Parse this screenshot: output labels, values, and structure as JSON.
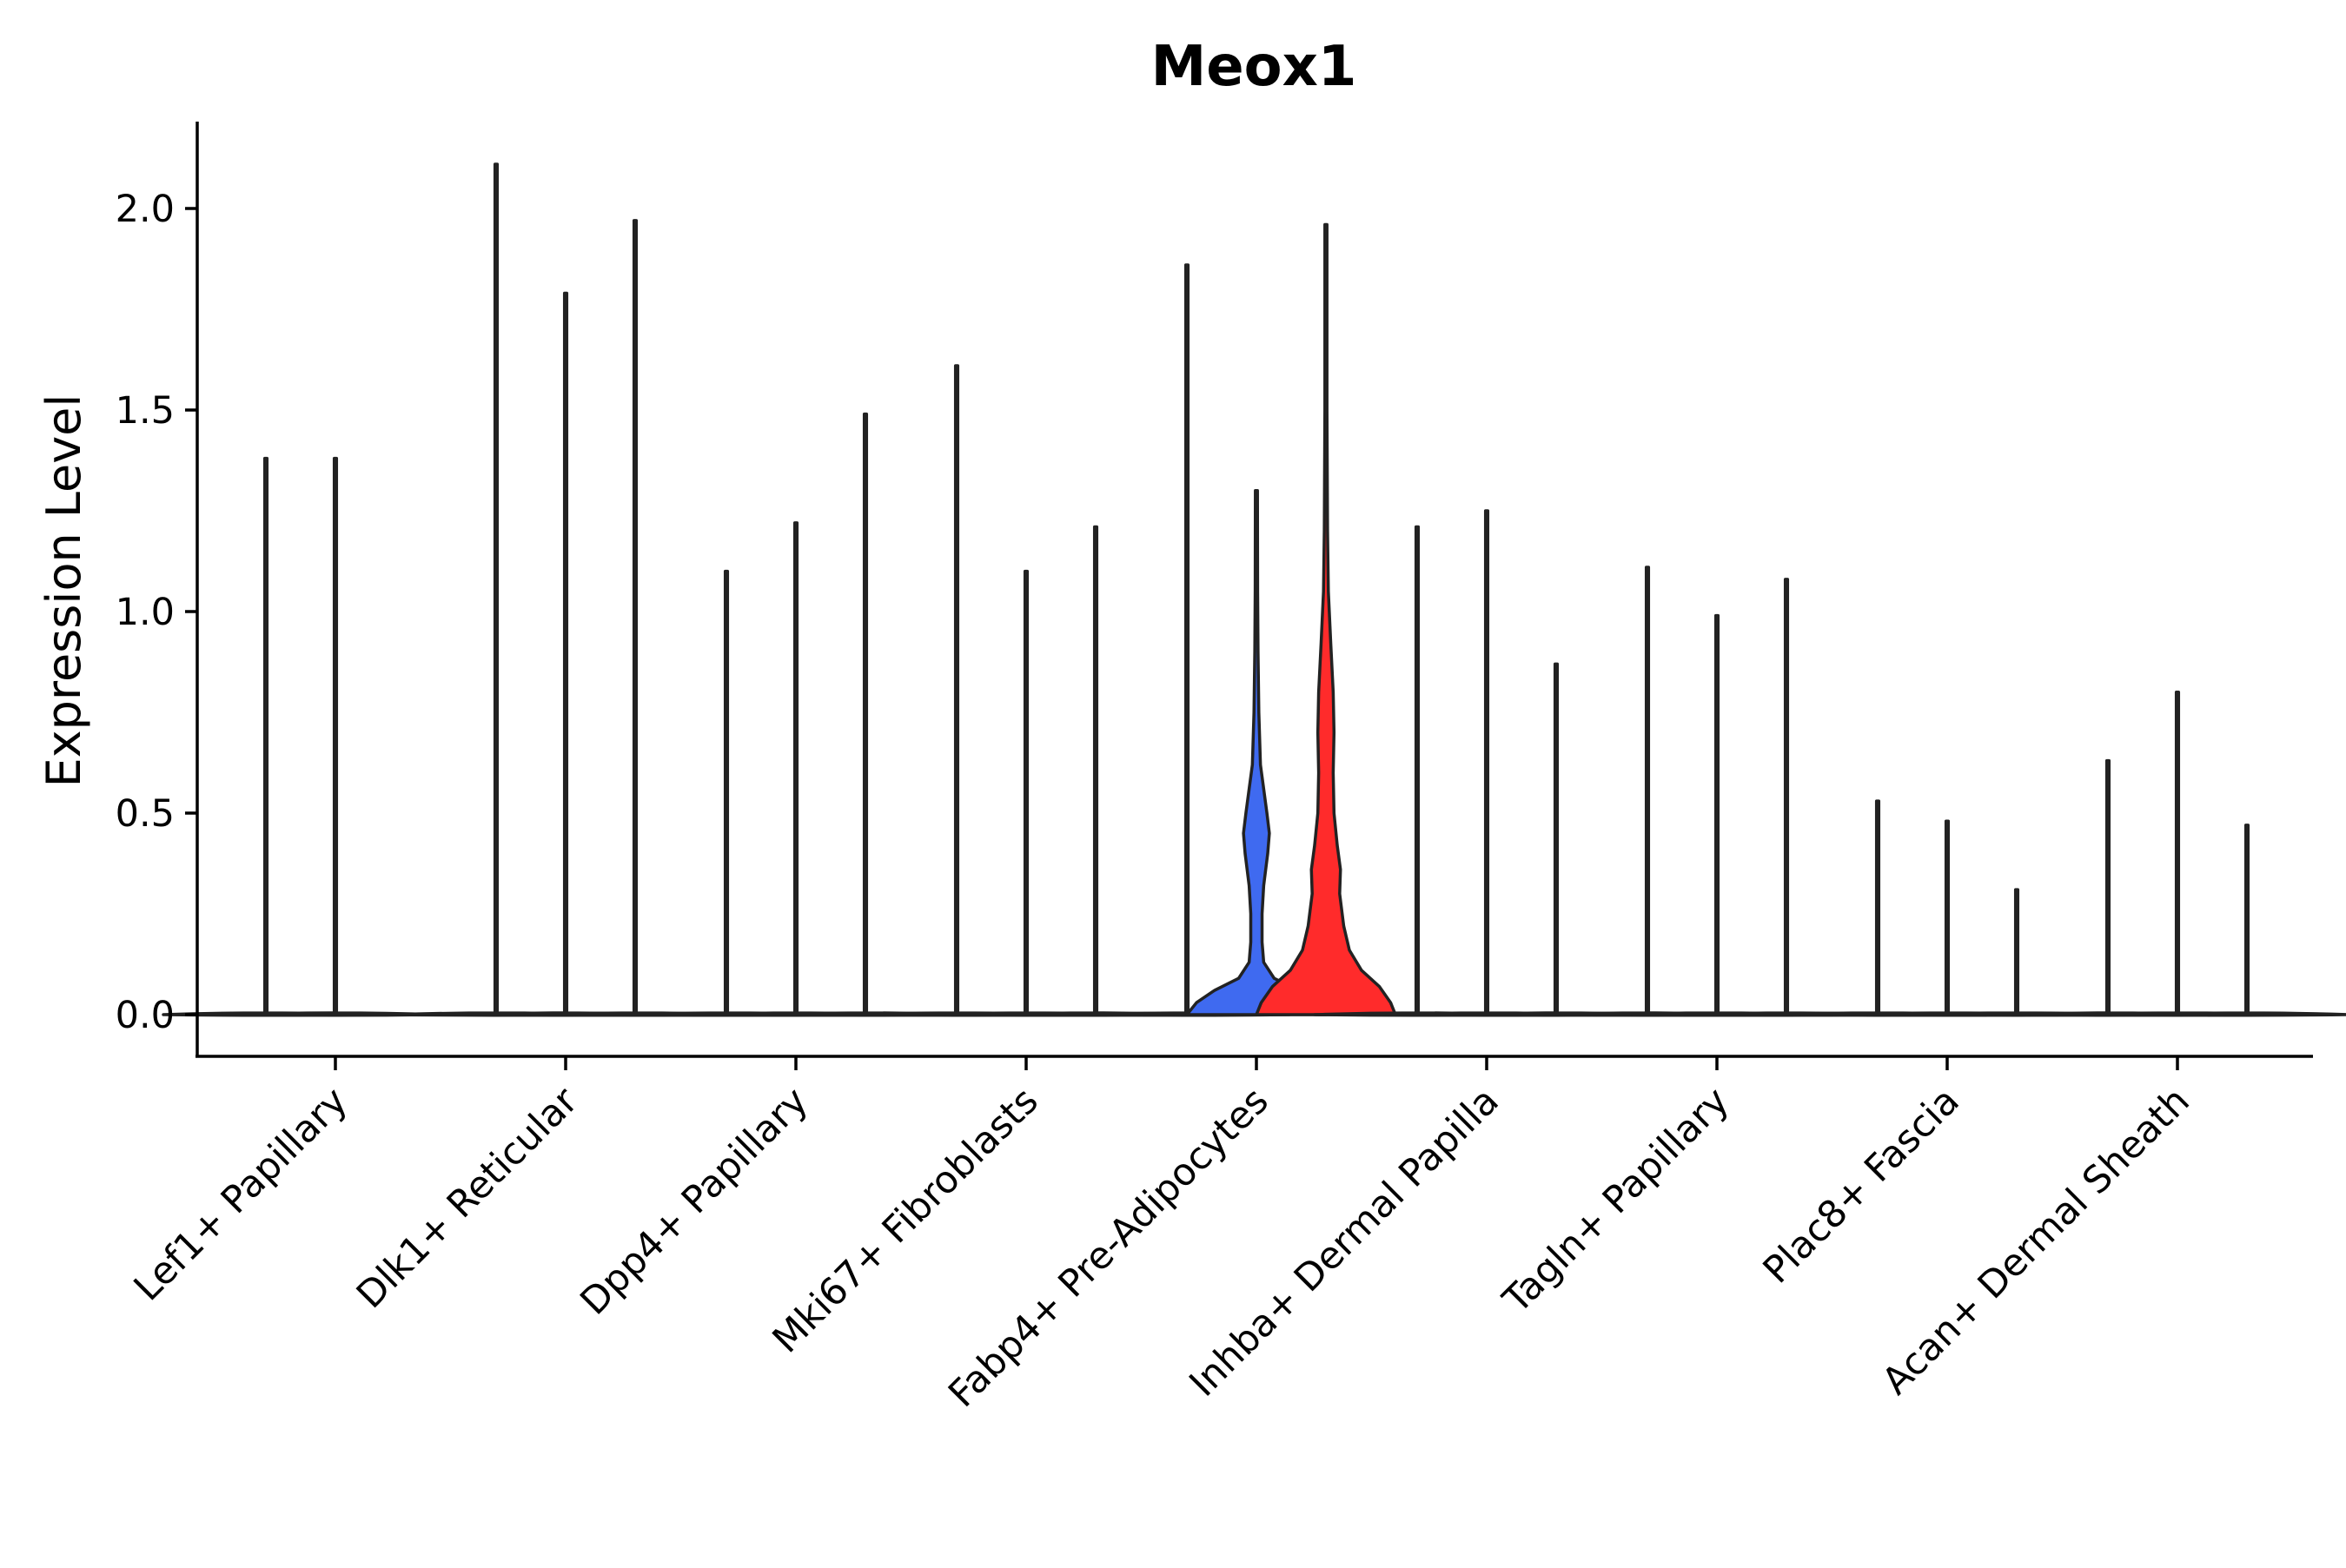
{
  "chart_data": {
    "type": "violin",
    "title": "Meox1",
    "xlabel": "",
    "ylabel": "Expression Level",
    "ylim": [
      -0.1,
      2.2
    ],
    "yticks": [
      0.0,
      0.5,
      1.0,
      1.5,
      2.0
    ],
    "ytick_labels": [
      "0.0",
      "0.5",
      "1.0",
      "1.5",
      "2.0"
    ],
    "grid": false,
    "legend": false,
    "categories": [
      "Lef1+ Papillary",
      "Dlk1+ Reticular",
      "Dpp4+ Papillary",
      "Mki67+ Fibroblasts",
      "Fabp4+ Pre-Adipocytes",
      "Inhba+ Dermal Papilla",
      "Tagln+ Papillary",
      "Plac8+ Fascia",
      "Acan+ Dermal Sheath"
    ],
    "groups_per_category": 3,
    "group_colors": [
      "#F8766D",
      "#00BA38",
      "#619CFF"
    ],
    "violins": [
      {
        "category": "Lef1+ Papillary",
        "slot": 0,
        "max": 1.38,
        "fill": "#F8766D",
        "prominent": false
      },
      {
        "category": "Lef1+ Papillary",
        "slot": 1,
        "max": 1.38,
        "fill": "#00BA38",
        "prominent": false
      },
      {
        "category": "Dlk1+ Reticular",
        "slot": 0,
        "max": 2.11,
        "fill": "#F8766D",
        "prominent": false
      },
      {
        "category": "Dlk1+ Reticular",
        "slot": 1,
        "max": 1.79,
        "fill": "#00BA38",
        "prominent": false
      },
      {
        "category": "Dlk1+ Reticular",
        "slot": 2,
        "max": 1.97,
        "fill": "#619CFF",
        "prominent": false
      },
      {
        "category": "Dpp4+ Papillary",
        "slot": 0,
        "max": 1.1,
        "fill": "#F8766D",
        "prominent": false
      },
      {
        "category": "Dpp4+ Papillary",
        "slot": 1,
        "max": 1.22,
        "fill": "#00BA38",
        "prominent": false
      },
      {
        "category": "Dpp4+ Papillary",
        "slot": 2,
        "max": 1.49,
        "fill": "#619CFF",
        "prominent": false
      },
      {
        "category": "Mki67+ Fibroblasts",
        "slot": 0,
        "max": 1.61,
        "fill": "#F8766D",
        "prominent": false
      },
      {
        "category": "Mki67+ Fibroblasts",
        "slot": 1,
        "max": 1.1,
        "fill": "#00BA38",
        "prominent": false
      },
      {
        "category": "Mki67+ Fibroblasts",
        "slot": 2,
        "max": 1.21,
        "fill": "#619CFF",
        "prominent": false
      },
      {
        "category": "Fabp4+ Pre-Adipocytes",
        "slot": 0,
        "max": 1.86,
        "fill": "#F8766D",
        "prominent": false
      },
      {
        "category": "Fabp4+ Pre-Adipocytes",
        "slot": 1,
        "max": 1.3,
        "fill": "#3F6AF0",
        "prominent": true,
        "density": [
          [
            0.0,
            0.86
          ],
          [
            0.03,
            0.74
          ],
          [
            0.06,
            0.52
          ],
          [
            0.09,
            0.22
          ],
          [
            0.13,
            0.09
          ],
          [
            0.18,
            0.07
          ],
          [
            0.25,
            0.07
          ],
          [
            0.32,
            0.09
          ],
          [
            0.4,
            0.14
          ],
          [
            0.45,
            0.16
          ],
          [
            0.5,
            0.13
          ],
          [
            0.56,
            0.09
          ],
          [
            0.62,
            0.05
          ],
          [
            0.75,
            0.03
          ],
          [
            0.9,
            0.02
          ],
          [
            1.05,
            0.015
          ],
          [
            1.3,
            0.01
          ]
        ]
      },
      {
        "category": "Fabp4+ Pre-Adipocytes",
        "slot": 2,
        "max": 1.96,
        "fill": "#FF2B2B",
        "prominent": true,
        "density": [
          [
            0.0,
            0.86
          ],
          [
            0.03,
            0.8
          ],
          [
            0.07,
            0.66
          ],
          [
            0.11,
            0.44
          ],
          [
            0.16,
            0.29
          ],
          [
            0.22,
            0.22
          ],
          [
            0.3,
            0.17
          ],
          [
            0.36,
            0.18
          ],
          [
            0.42,
            0.14
          ],
          [
            0.5,
            0.1
          ],
          [
            0.6,
            0.09
          ],
          [
            0.7,
            0.1
          ],
          [
            0.8,
            0.09
          ],
          [
            0.92,
            0.06
          ],
          [
            1.05,
            0.03
          ],
          [
            1.2,
            0.02
          ],
          [
            1.5,
            0.012
          ],
          [
            1.96,
            0.008
          ]
        ]
      },
      {
        "category": "Inhba+ Dermal Papilla",
        "slot": 0,
        "max": 1.21,
        "fill": "#F8766D",
        "prominent": false
      },
      {
        "category": "Inhba+ Dermal Papilla",
        "slot": 1,
        "max": 1.25,
        "fill": "#00BA38",
        "prominent": false
      },
      {
        "category": "Inhba+ Dermal Papilla",
        "slot": 2,
        "max": 0.87,
        "fill": "#619CFF",
        "prominent": false
      },
      {
        "category": "Tagln+ Papillary",
        "slot": 0,
        "max": 1.11,
        "fill": "#F8766D",
        "prominent": false
      },
      {
        "category": "Tagln+ Papillary",
        "slot": 1,
        "max": 0.99,
        "fill": "#00BA38",
        "prominent": false
      },
      {
        "category": "Tagln+ Papillary",
        "slot": 2,
        "max": 1.08,
        "fill": "#619CFF",
        "prominent": false
      },
      {
        "category": "Plac8+ Fascia",
        "slot": 0,
        "max": 0.53,
        "fill": "#F8766D",
        "prominent": false
      },
      {
        "category": "Plac8+ Fascia",
        "slot": 1,
        "max": 0.48,
        "fill": "#00BA38",
        "prominent": false
      },
      {
        "category": "Plac8+ Fascia",
        "slot": 2,
        "max": 0.31,
        "fill": "#619CFF",
        "prominent": false
      },
      {
        "category": "Acan+ Dermal Sheath",
        "slot": 0,
        "max": 0.63,
        "fill": "#F8766D",
        "prominent": false
      },
      {
        "category": "Acan+ Dermal Sheath",
        "slot": 1,
        "max": 0.8,
        "fill": "#00BA38",
        "prominent": false
      },
      {
        "category": "Acan+ Dermal Sheath",
        "slot": 2,
        "max": 0.47,
        "fill": "#619CFF",
        "prominent": false
      }
    ]
  }
}
